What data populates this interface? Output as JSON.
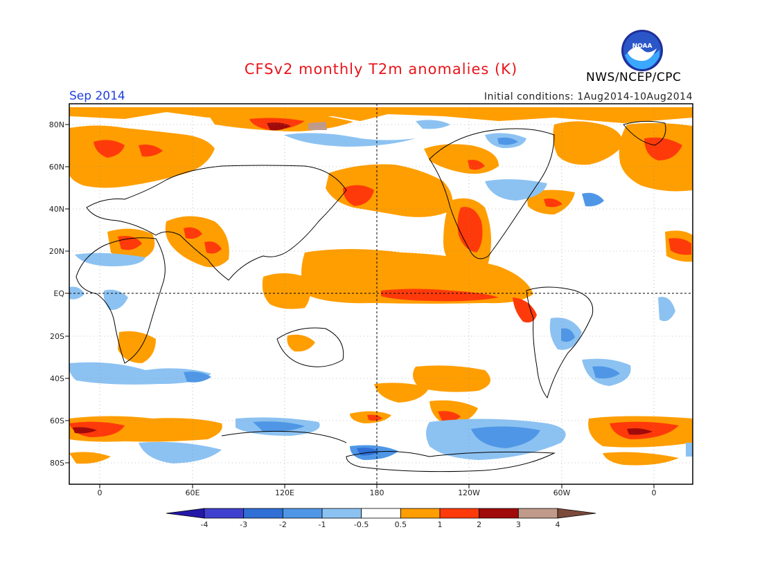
{
  "title": "CFSv2 monthly T2m anomalies (K)",
  "month": "Sep 2014",
  "initial_conditions": "Initial conditions: 1Aug2014-10Aug2014",
  "agency": "NWS/NCEP/CPC",
  "logo_text": "NOAA",
  "lat_labels": [
    "80N",
    "60N",
    "40N",
    "20N",
    "EQ",
    "20S",
    "40S",
    "60S",
    "80S"
  ],
  "lon_labels": [
    "0",
    "60E",
    "120E",
    "180",
    "120W",
    "60W",
    "0"
  ],
  "colorbar": {
    "labels": [
      "-4",
      "-3",
      "-2",
      "-1",
      "-0.5",
      "0.5",
      "1",
      "2",
      "3",
      "4"
    ],
    "colors": [
      "#2418a8",
      "#4040d0",
      "#2f6fd6",
      "#4f97e6",
      "#8cc2f2",
      "#ffffff",
      "#ff9e00",
      "#ff3a0a",
      "#a10a0a",
      "#c09a8a",
      "#7b4a3a"
    ]
  }
}
